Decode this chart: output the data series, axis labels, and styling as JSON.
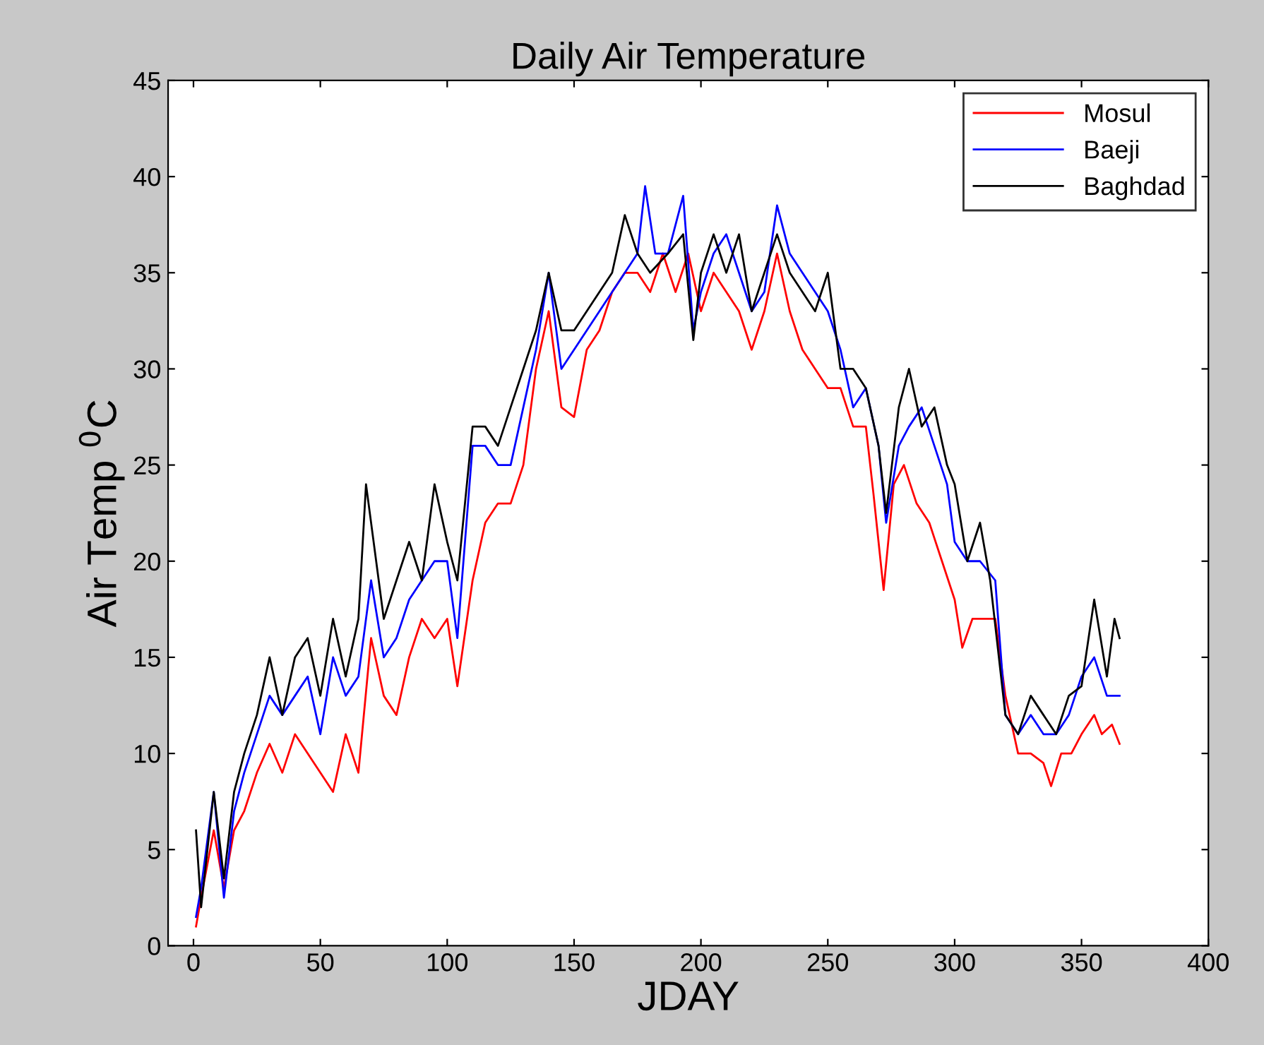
{
  "chart_data": {
    "type": "line",
    "title": "Daily Air Temperature",
    "xlabel": "JDAY",
    "ylabel": "Air Temp $^{0}$C",
    "xlim": [
      -10,
      400
    ],
    "xticks": [
      0,
      50,
      100,
      150,
      200,
      250,
      300,
      350,
      400
    ],
    "ylim": [
      0,
      45
    ],
    "yticks": [
      0,
      5,
      10,
      15,
      20,
      25,
      30,
      35,
      40,
      45
    ],
    "grid": false,
    "legend": "top right",
    "marker": "none",
    "line_style": "solid",
    "series": [
      {
        "name": "Mosul",
        "color": "#ff0000",
        "x": [
          1,
          3,
          8,
          12,
          16,
          20,
          25,
          30,
          35,
          40,
          45,
          50,
          55,
          60,
          65,
          70,
          75,
          80,
          85,
          90,
          95,
          100,
          104,
          110,
          115,
          120,
          125,
          130,
          135,
          140,
          145,
          150,
          155,
          160,
          165,
          170,
          175,
          180,
          185,
          190,
          195,
          200,
          205,
          210,
          215,
          220,
          225,
          230,
          235,
          240,
          245,
          250,
          255,
          260,
          265,
          268,
          272,
          276,
          280,
          285,
          290,
          295,
          300,
          303,
          307,
          312,
          316,
          320,
          325,
          330,
          335,
          338,
          342,
          346,
          350,
          355,
          358,
          362,
          365
        ],
        "values": [
          1.0,
          2.5,
          6,
          3,
          6,
          7,
          9,
          10.5,
          9,
          11,
          10,
          9,
          8,
          11,
          9,
          16,
          13,
          12,
          15,
          17,
          16,
          17,
          13.5,
          19,
          22,
          23,
          23,
          25,
          30,
          33,
          28,
          27.5,
          31,
          32,
          34,
          35,
          35,
          34,
          36,
          34,
          36,
          33,
          35,
          34,
          33,
          31,
          33,
          36,
          33,
          31,
          30,
          29,
          29,
          27,
          27,
          23.5,
          18.5,
          24,
          25,
          23,
          22,
          20,
          18,
          15.5,
          17,
          17,
          17,
          13,
          10,
          10,
          9.5,
          8.3,
          10,
          10,
          11,
          12,
          11,
          11.5,
          10.5
        ]
      },
      {
        "name": "Baeji",
        "color": "#0000ff",
        "x": [
          1,
          3,
          8,
          12,
          16,
          20,
          25,
          30,
          35,
          40,
          45,
          50,
          55,
          60,
          65,
          70,
          75,
          80,
          85,
          90,
          95,
          100,
          104,
          110,
          115,
          120,
          125,
          130,
          135,
          140,
          145,
          150,
          155,
          160,
          165,
          170,
          175,
          178,
          182,
          187,
          193,
          197,
          200,
          205,
          210,
          215,
          220,
          225,
          230,
          235,
          240,
          245,
          250,
          255,
          260,
          265,
          270,
          273,
          278,
          282,
          287,
          292,
          297,
          300,
          305,
          310,
          316,
          320,
          325,
          330,
          335,
          340,
          345,
          350,
          355,
          360,
          365
        ],
        "values": [
          1.5,
          3,
          8,
          2.5,
          7,
          9,
          11,
          13,
          12,
          13,
          14,
          11,
          15,
          13,
          14,
          19,
          15,
          16,
          18,
          19,
          20,
          20,
          16,
          26,
          26,
          25,
          25,
          28,
          31,
          35,
          30,
          31,
          32,
          33,
          34,
          35,
          36,
          39.5,
          36,
          36,
          39,
          32,
          34,
          36,
          37,
          35,
          33,
          34,
          38.5,
          36,
          35,
          34,
          33,
          31,
          28,
          29,
          26,
          22,
          26,
          27,
          28,
          26,
          24,
          21,
          20,
          20,
          19,
          12,
          11,
          12,
          11,
          11,
          12,
          14,
          15,
          13,
          13
        ]
      },
      {
        "name": "Baghdad",
        "color": "#000000",
        "x": [
          1,
          3,
          8,
          12,
          16,
          20,
          25,
          30,
          35,
          40,
          45,
          50,
          55,
          60,
          65,
          68,
          75,
          80,
          85,
          90,
          95,
          100,
          104,
          110,
          115,
          120,
          125,
          130,
          135,
          140,
          145,
          150,
          155,
          160,
          165,
          170,
          175,
          180,
          187,
          193,
          197,
          200,
          205,
          210,
          215,
          220,
          225,
          230,
          235,
          240,
          245,
          250,
          255,
          260,
          265,
          270,
          273,
          278,
          282,
          287,
          292,
          297,
          300,
          305,
          310,
          314,
          320,
          325,
          330,
          335,
          340,
          345,
          350,
          355,
          360,
          363,
          365
        ],
        "values": [
          6,
          2,
          8,
          3.5,
          8,
          10,
          12,
          15,
          12,
          15,
          16,
          13,
          17,
          14,
          17,
          24,
          17,
          19,
          21,
          19,
          24,
          21,
          19,
          27,
          27,
          26,
          28,
          30,
          32,
          35,
          32,
          32,
          33,
          34,
          35,
          38,
          36,
          35,
          36,
          37,
          31.5,
          35,
          37,
          35,
          37,
          33,
          35,
          37,
          35,
          34,
          33,
          35,
          30,
          30,
          29,
          26,
          22.5,
          28,
          30,
          27,
          28,
          25,
          24,
          20,
          22,
          19,
          12,
          11,
          13,
          12,
          11,
          13,
          13.5,
          18,
          14,
          17,
          16
        ]
      }
    ]
  }
}
